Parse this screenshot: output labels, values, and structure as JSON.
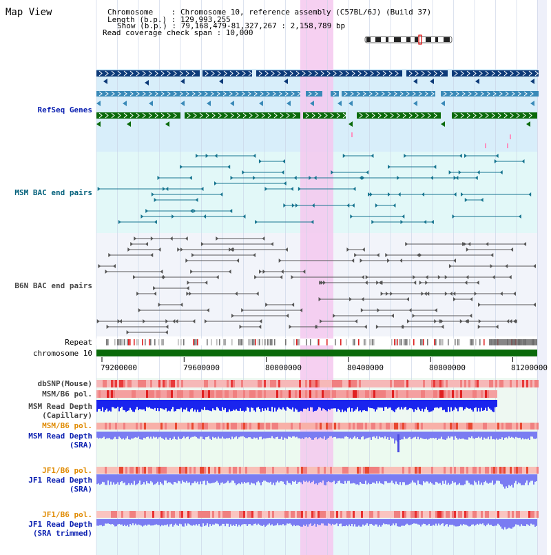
{
  "header": {
    "title": "Map View",
    "chromosome_line": "Chromosome    : Chromosome 10, reference assembly (C57BL/6J) (Build 37)",
    "length_line": "Length (b.p.) : 129,993,255",
    "show_line": "Show (b.p.) : 79,168,479-81,327,267 : 2,158,789 bp",
    "coverage_line": "Read coverage check span : 10,000"
  },
  "tracks": {
    "refseq": "RefSeq Genes",
    "msm_bac": "MSM BAC end pairs",
    "b6n_bac": "B6N BAC end pairs",
    "repeat": "Repeat",
    "chromosome": "chromosome 10",
    "dbsnp": "dbSNP(Mouse)",
    "msm_b6_pol": "MSM/B6 pol.",
    "msm_depth_cap_1": "MSM Read Depth",
    "msm_depth_cap_2": "(Capillary)",
    "msm_b6_pol_2": "MSM/B6 pol.",
    "msm_depth_sra_1": "MSM Read Depth",
    "msm_depth_sra_2": "(SRA)",
    "jf1_b6_pol": "JF1/B6 pol.",
    "jf1_depth_sra_1": "JF1 Read Depth",
    "jf1_depth_sra_2": "(SRA)",
    "jf1_b6_pol_2": "JF1/B6 pol.",
    "jf1_depth_trim_1": "JF1 Read Depth",
    "jf1_depth_trim_2": "(SRA trimmed)"
  },
  "axis": {
    "ticks": [
      "79200000",
      "79600000",
      "80000000",
      "80400000",
      "80800000",
      "81200000"
    ]
  },
  "colors": {
    "refseq_dark": "#0d3a78",
    "refseq_mid": "#3a8ab8",
    "refseq_green": "#0a6a0a",
    "msm_bac": "#16748f",
    "b6n_bac": "#555555",
    "highlight": "#f5c8ee",
    "chromosome": "#0a6a0a",
    "depth_blue": "#1a24ee",
    "depth_light": "#7a7cf2"
  }
}
